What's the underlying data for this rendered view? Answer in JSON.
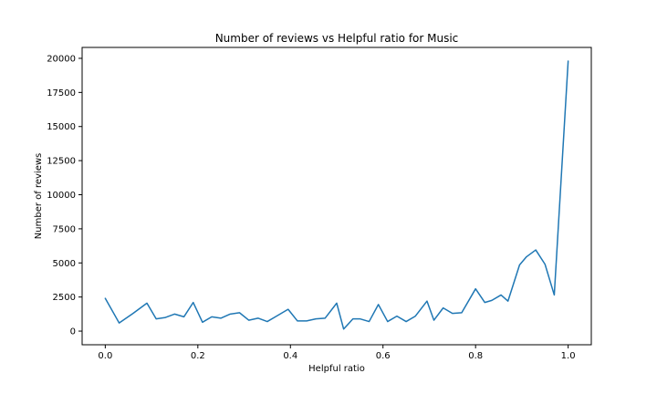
{
  "chart_data": {
    "type": "line",
    "title": "Number of reviews vs Helpful ratio for Music",
    "xlabel": "Helpful ratio",
    "ylabel": "Number of reviews",
    "xlim": [
      -0.05,
      1.05
    ],
    "ylim": [
      -1000,
      20800
    ],
    "grid": false,
    "legend": "none",
    "colors": {
      "line": "#1f77b4"
    },
    "x_ticks": [
      {
        "value": 0.0,
        "label": "0.0"
      },
      {
        "value": 0.2,
        "label": "0.2"
      },
      {
        "value": 0.4,
        "label": "0.4"
      },
      {
        "value": 0.6,
        "label": "0.6"
      },
      {
        "value": 0.8,
        "label": "0.8"
      },
      {
        "value": 1.0,
        "label": "1.0"
      }
    ],
    "y_ticks": [
      {
        "value": 0,
        "label": "0"
      },
      {
        "value": 2500,
        "label": "2500"
      },
      {
        "value": 5000,
        "label": "5000"
      },
      {
        "value": 7500,
        "label": "7500"
      },
      {
        "value": 10000,
        "label": "10000"
      },
      {
        "value": 12500,
        "label": "12500"
      },
      {
        "value": 15000,
        "label": "15000"
      },
      {
        "value": 17500,
        "label": "17500"
      },
      {
        "value": 20000,
        "label": "20000"
      }
    ],
    "series": [
      {
        "x": [
          0.0,
          0.03,
          0.06,
          0.09,
          0.11,
          0.13,
          0.15,
          0.17,
          0.19,
          0.21,
          0.23,
          0.25,
          0.27,
          0.29,
          0.31,
          0.33,
          0.35,
          0.37,
          0.395,
          0.415,
          0.435,
          0.455,
          0.475,
          0.5,
          0.515,
          0.535,
          0.55,
          0.57,
          0.59,
          0.61,
          0.63,
          0.65,
          0.67,
          0.695,
          0.71,
          0.73,
          0.75,
          0.77,
          0.8,
          0.82,
          0.835,
          0.855,
          0.87,
          0.895,
          0.91,
          0.93,
          0.95,
          0.97,
          1.0
        ],
        "y": [
          2400,
          600,
          1300,
          2050,
          900,
          1000,
          1250,
          1050,
          2100,
          650,
          1050,
          950,
          1250,
          1350,
          800,
          950,
          700,
          1100,
          1600,
          750,
          750,
          900,
          950,
          2050,
          150,
          900,
          900,
          700,
          1950,
          700,
          1100,
          700,
          1100,
          2200,
          800,
          1700,
          1300,
          1350,
          3100,
          2100,
          2250,
          2650,
          2200,
          4850,
          5450,
          5950,
          4900,
          2650,
          19800
        ]
      }
    ]
  }
}
